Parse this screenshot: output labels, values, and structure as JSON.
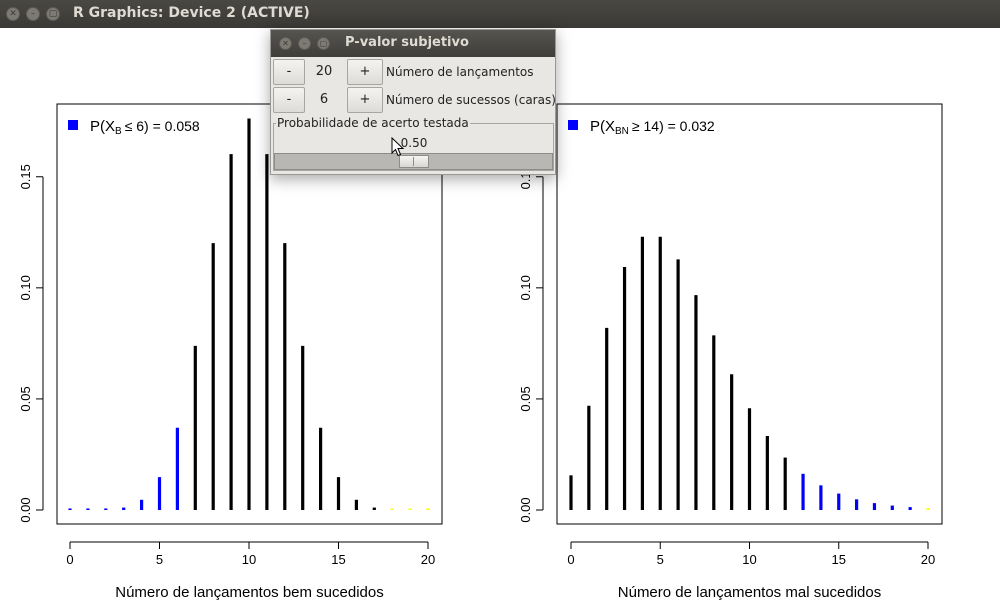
{
  "window": {
    "title": "R Graphics: Device 2 (ACTIVE)",
    "buttons": [
      "close-icon",
      "minimize-icon",
      "maximize-icon"
    ]
  },
  "dialog": {
    "title": "P-valor subjetivo",
    "row1": {
      "minus": "-",
      "value": "20",
      "plus": "+",
      "label": "Número de lançamentos"
    },
    "row2": {
      "minus": "-",
      "value": "6",
      "plus": "+",
      "label": "Número de sucessos (caras)"
    },
    "group_label": "Probabilidade de acerto testada",
    "slider": {
      "value_text": "0.50",
      "fraction": 0.5
    }
  },
  "chart_data": [
    {
      "type": "bar",
      "xlabel": "Número de lançamentos bem sucedidos",
      "ylabel": "",
      "x": [
        0,
        1,
        2,
        3,
        4,
        5,
        6,
        7,
        8,
        9,
        10,
        11,
        12,
        13,
        14,
        15,
        16,
        17,
        18,
        19,
        20
      ],
      "values": [
        1e-06,
        2e-05,
        0.0002,
        0.0011,
        0.0046,
        0.0148,
        0.037,
        0.0739,
        0.1201,
        0.1602,
        0.1762,
        0.1602,
        0.1201,
        0.0739,
        0.037,
        0.0148,
        0.0046,
        0.0011,
        0.0002,
        2e-05,
        1e-06
      ],
      "colors": [
        "#0000ff",
        "#0000ff",
        "#0000ff",
        "#0000ff",
        "#0000ff",
        "#0000ff",
        "#0000ff",
        "#000000",
        "#000000",
        "#000000",
        "#000000",
        "#000000",
        "#000000",
        "#000000",
        "#000000",
        "#000000",
        "#000000",
        "#000000",
        "#ffff00",
        "#ffff00",
        "#ffff00"
      ],
      "xticks": [
        "0",
        "5",
        "10",
        "15",
        "20"
      ],
      "yticks": [
        "0.00",
        "0.05",
        "0.10",
        "0.15"
      ],
      "xlim": [
        0,
        20
      ],
      "ylim": [
        0,
        0.18
      ],
      "legend": {
        "position": "top-left",
        "color": "#0000ff",
        "text_prefix": "P(X",
        "subscript": "B",
        "text_suffix": "≤  6) = 0.058"
      }
    },
    {
      "type": "bar",
      "xlabel": "Número de lançamentos mal sucedidos",
      "ylabel": "",
      "x": [
        0,
        1,
        2,
        3,
        4,
        5,
        6,
        7,
        8,
        9,
        10,
        11,
        12,
        13,
        14,
        15,
        16,
        17,
        18,
        19,
        20
      ],
      "values": [
        0.0156,
        0.0469,
        0.082,
        0.1094,
        0.123,
        0.123,
        0.1128,
        0.0967,
        0.0786,
        0.0611,
        0.0458,
        0.0333,
        0.0236,
        0.0163,
        0.0111,
        0.0074,
        0.0048,
        0.0031,
        0.002,
        0.0013,
        0.0008
      ],
      "colors": [
        "#000000",
        "#000000",
        "#000000",
        "#000000",
        "#000000",
        "#000000",
        "#000000",
        "#000000",
        "#000000",
        "#000000",
        "#000000",
        "#000000",
        "#000000",
        "#0000ff",
        "#0000ff",
        "#0000ff",
        "#0000ff",
        "#0000ff",
        "#0000ff",
        "#0000ff",
        "#ffff00"
      ],
      "xticks": [
        "0",
        "5",
        "10",
        "15",
        "20"
      ],
      "yticks": [
        "0.00",
        "0.05",
        "0.10",
        "0.15"
      ],
      "xlim": [
        0,
        20
      ],
      "ylim": [
        0,
        0.18
      ],
      "legend": {
        "position": "top-left",
        "color": "#0000ff",
        "text_prefix": "P(X",
        "subscript": "BN",
        "text_suffix": "≥  14) = 0.032"
      }
    }
  ]
}
